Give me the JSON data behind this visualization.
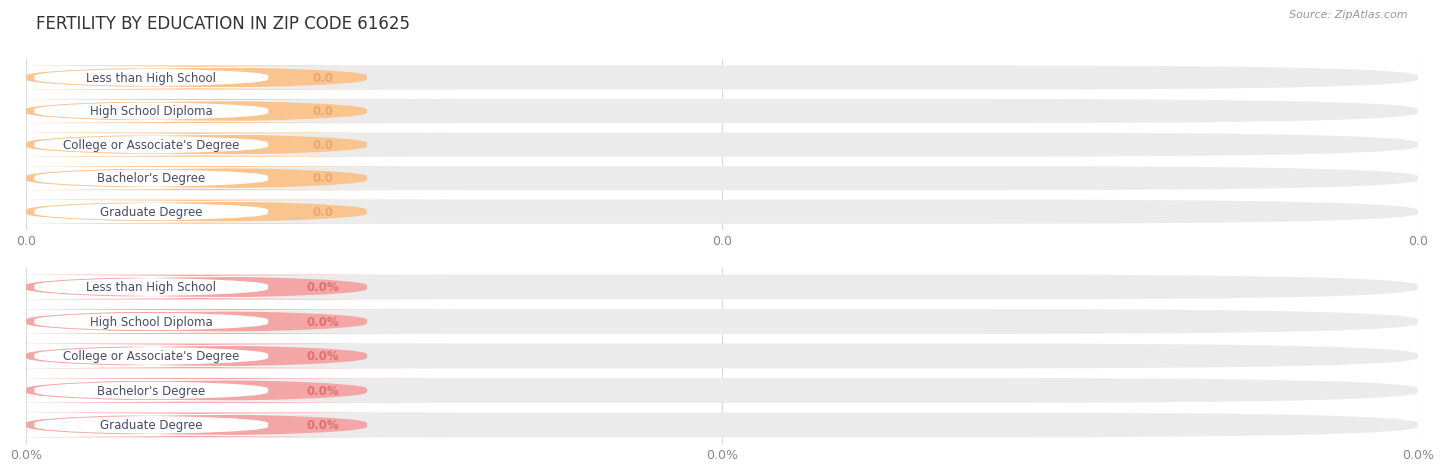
{
  "title": "FERTILITY BY EDUCATION IN ZIP CODE 61625",
  "source": "Source: ZipAtlas.com",
  "categories": [
    "Less than High School",
    "High School Diploma",
    "College or Associate's Degree",
    "Bachelor's Degree",
    "Graduate Degree"
  ],
  "top_values": [
    0.0,
    0.0,
    0.0,
    0.0,
    0.0
  ],
  "bottom_values": [
    0.0,
    0.0,
    0.0,
    0.0,
    0.0
  ],
  "top_bar_color": "#F9C48E",
  "bottom_bar_color": "#F4A5A5",
  "bg_bar_color": "#EBEBEB",
  "top_xtick_labels": [
    "0.0",
    "0.0",
    "0.0"
  ],
  "bottom_xtick_labels": [
    "0.0%",
    "0.0%",
    "0.0%"
  ],
  "background_color": "#FFFFFF",
  "title_fontsize": 12,
  "label_fontsize": 8.5,
  "label_color": "#4a4a6a",
  "value_color_top": "#E8A870",
  "value_color_bottom": "#E07070",
  "title_color": "#333333",
  "grid_color": "#D8D8D8",
  "source_color": "#999999",
  "top_suffix": "",
  "bottom_suffix": "%"
}
